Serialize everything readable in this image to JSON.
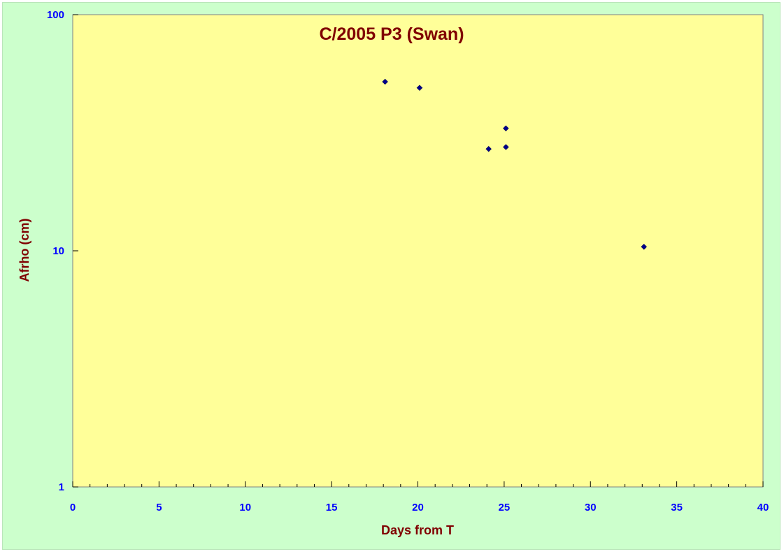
{
  "chart_data": {
    "type": "scatter",
    "title": "C/2005 P3 (Swan)",
    "xlabel": "Days from T",
    "ylabel": "Afrho (cm)",
    "xlim": [
      0,
      40
    ],
    "ylim": [
      1,
      100
    ],
    "yscale": "log",
    "xticks": [
      0,
      5,
      10,
      15,
      20,
      25,
      30,
      35,
      40
    ],
    "xtick_labels": [
      "0",
      "5",
      "10",
      "15",
      "20",
      "25",
      "30",
      "35",
      "40"
    ],
    "yticks": [
      1,
      10,
      100
    ],
    "ytick_labels": [
      "1",
      "10",
      "100"
    ],
    "grid": false,
    "legend": "none",
    "series": [
      {
        "x": [
          18.1,
          20.1,
          24.1,
          25.1,
          25.1,
          33.1
        ],
        "y": [
          52.0,
          49.0,
          27.0,
          27.5,
          33.0,
          10.4
        ],
        "color": "#00008b",
        "marker": "diamond"
      }
    ],
    "colors": {
      "outer_background": "#ccffcc",
      "plot_background": "#ffff99",
      "tick_label": "#0000ff",
      "title": "#800000",
      "axis_title": "#800000"
    }
  }
}
